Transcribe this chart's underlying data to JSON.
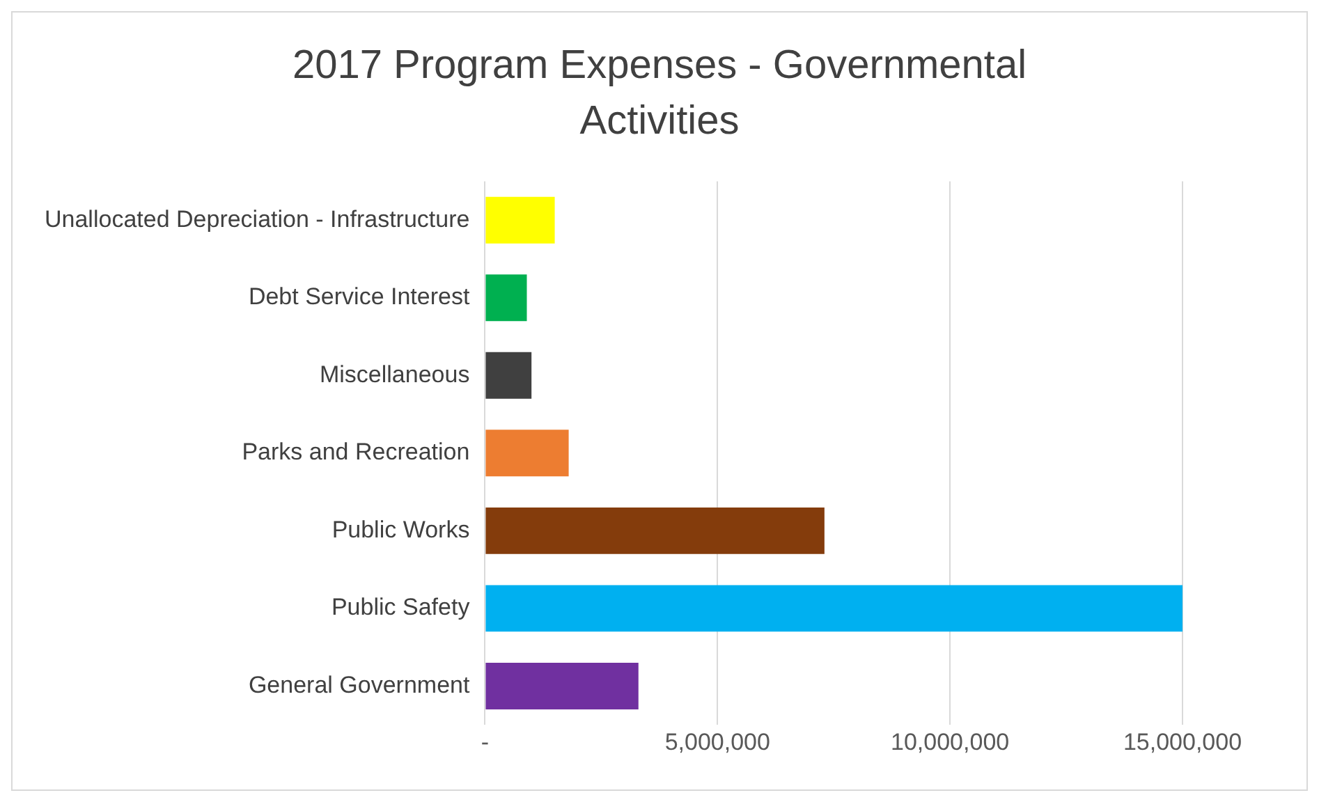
{
  "chart_data": {
    "type": "bar",
    "orientation": "horizontal",
    "title": "2017 Program Expenses - Governmental Activities",
    "categories": [
      "Unallocated Depreciation - Infrastructure",
      "Debt Service Interest",
      "Miscellaneous",
      "Parks and Recreation",
      "Public Works",
      "Public Safety",
      "General Government"
    ],
    "values": [
      1500000,
      900000,
      1000000,
      1800000,
      7300000,
      15000000,
      3300000
    ],
    "colors": [
      "#ffff00",
      "#00b050",
      "#404040",
      "#ed7d31",
      "#843c0c",
      "#00b0f0",
      "#7030a0"
    ],
    "xlim": [
      0,
      15000000
    ],
    "xticks": [
      {
        "value": 0,
        "label": "-"
      },
      {
        "value": 5000000,
        "label": "5,000,000"
      },
      {
        "value": 10000000,
        "label": "10,000,000"
      },
      {
        "value": 15000000,
        "label": "15,000,000"
      }
    ],
    "grid": "x"
  }
}
